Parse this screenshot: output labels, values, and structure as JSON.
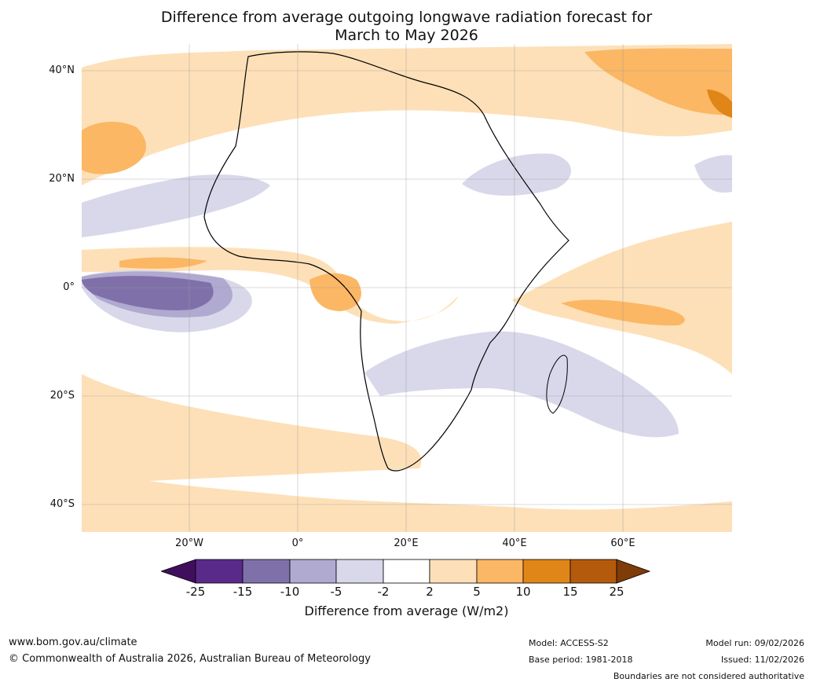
{
  "title": {
    "line1": "Difference from average outgoing longwave radiation forecast for",
    "line2": "March to May 2026"
  },
  "axes": {
    "lat_labels": [
      "40°N",
      "20°N",
      "0°",
      "20°S",
      "40°S"
    ],
    "lon_labels": [
      "20°W",
      "0°",
      "20°E",
      "40°E",
      "60°E"
    ]
  },
  "colorbar": {
    "label": "Difference from average (W/m2)",
    "ticks": [
      "-25",
      "-15",
      "-10",
      "-5",
      "-2",
      "2",
      "5",
      "10",
      "15",
      "25"
    ],
    "colors": [
      "#3f0f5e",
      "#5a2a8a",
      "#8070aa",
      "#b0a9d0",
      "#d8d8ea",
      "#ffffff",
      "#fde0b8",
      "#fbb764",
      "#e08618",
      "#b45a0c",
      "#7f3b08"
    ]
  },
  "footer": {
    "website": "www.bom.gov.au/climate",
    "copyright": "© Commonwealth of Australia 2026, Australian Bureau of Meteorology",
    "model": "Model: ACCESS-S2",
    "base_period": "Base period: 1981-2018",
    "model_run": "Model run: 09/02/2026",
    "issued": "Issued: 11/02/2026",
    "disclaimer": "Boundaries are not considered authoritative"
  }
}
